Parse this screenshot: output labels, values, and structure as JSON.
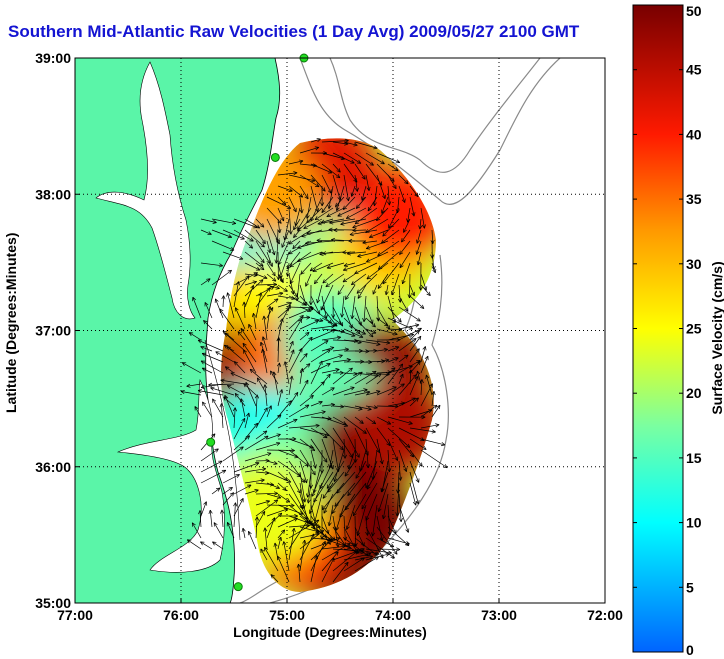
{
  "chart_data": {
    "type": "heatmap",
    "title": "Southern Mid-Atlantic Raw Velocities (1 Day Avg) 2009/05/27 2100 GMT",
    "xlabel": "Longitude (Degrees:Minutes)",
    "ylabel": "Latitude (Degrees:Minutes)",
    "x_ticks": [
      "77:00",
      "76:00",
      "75:00",
      "74:00",
      "73:00",
      "72:00"
    ],
    "y_ticks": [
      "39:00",
      "38:00",
      "37:00",
      "36:00",
      "35:00"
    ],
    "xlim": [
      -77,
      -72
    ],
    "ylim": [
      35,
      39
    ],
    "grid": true,
    "colorbar": {
      "label": "Surface Velocity (cm/s)",
      "range": [
        0,
        50
      ],
      "ticks": [
        "0",
        "5",
        "10",
        "15",
        "20",
        "25",
        "30",
        "35",
        "40",
        "45",
        "50"
      ]
    },
    "speed_field": [
      {
        "lon": -74.8,
        "lat": 37.96,
        "speed": 8
      },
      {
        "lon": -74.95,
        "lat": 37.75,
        "speed": 18
      },
      {
        "lon": -75.25,
        "lat": 37.5,
        "speed": 12
      },
      {
        "lon": -75.35,
        "lat": 37.15,
        "speed": 30
      },
      {
        "lon": -75.05,
        "lat": 37.15,
        "speed": 25
      },
      {
        "lon": -74.45,
        "lat": 37.35,
        "speed": 22
      },
      {
        "lon": -74.1,
        "lat": 37.6,
        "speed": 28
      },
      {
        "lon": -73.95,
        "lat": 37.85,
        "speed": 40
      },
      {
        "lon": -74.6,
        "lat": 38.2,
        "speed": 42
      },
      {
        "lon": -75.15,
        "lat": 38.0,
        "speed": 32
      },
      {
        "lon": -75.35,
        "lat": 36.7,
        "speed": 48
      },
      {
        "lon": -75.0,
        "lat": 36.8,
        "speed": 35
      },
      {
        "lon": -74.6,
        "lat": 36.95,
        "speed": 15
      },
      {
        "lon": -74.1,
        "lat": 36.7,
        "speed": 48
      },
      {
        "lon": -75.3,
        "lat": 36.25,
        "speed": 12
      },
      {
        "lon": -74.85,
        "lat": 36.25,
        "speed": 10
      },
      {
        "lon": -74.55,
        "lat": 36.5,
        "speed": 16
      },
      {
        "lon": -74.95,
        "lat": 35.95,
        "speed": 18
      },
      {
        "lon": -75.3,
        "lat": 35.75,
        "speed": 22
      },
      {
        "lon": -74.3,
        "lat": 36.15,
        "speed": 50
      },
      {
        "lon": -74.25,
        "lat": 35.6,
        "speed": 50
      },
      {
        "lon": -74.55,
        "lat": 35.35,
        "speed": 50
      },
      {
        "lon": -74.9,
        "lat": 35.45,
        "speed": 38
      },
      {
        "lon": -75.1,
        "lat": 35.65,
        "speed": 24
      },
      {
        "lon": -73.95,
        "lat": 36.3,
        "speed": 46
      }
    ],
    "stations": [
      {
        "lon": -74.84,
        "lat": 39.0
      },
      {
        "lon": -75.11,
        "lat": 38.27
      },
      {
        "lon": -75.72,
        "lat": 36.18
      },
      {
        "lon": -75.46,
        "lat": 35.12
      }
    ]
  },
  "colors": {
    "land": "#5af5a8",
    "title": "#1414d2",
    "ocean": "#ffffff",
    "station": "#22dd22"
  }
}
